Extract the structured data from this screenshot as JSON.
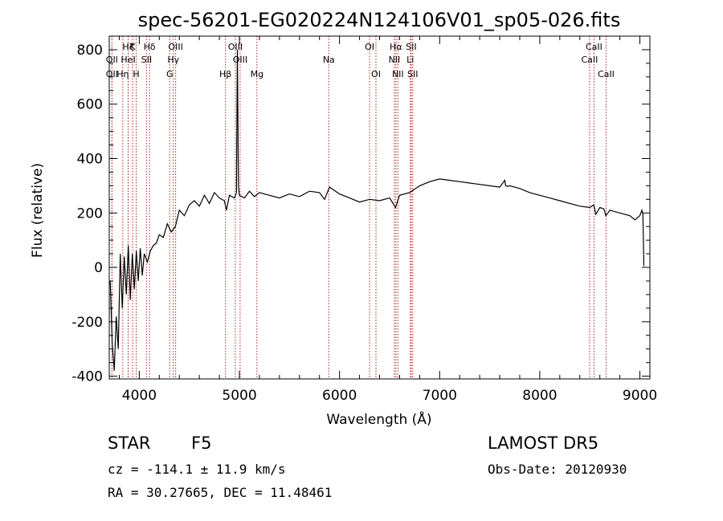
{
  "chart_data": {
    "type": "line",
    "title": "spec-56201-EG020224N124106V01_sp05-026.fits",
    "xlabel": "Wavelength (Å)",
    "ylabel": "Flux (relative)",
    "xlim": [
      3700,
      9100
    ],
    "ylim": [
      -410,
      850
    ],
    "x_ticks": [
      {
        "value": 4000,
        "label": "4000"
      },
      {
        "value": 5000,
        "label": "5000"
      },
      {
        "value": 6000,
        "label": "6000"
      },
      {
        "value": 7000,
        "label": "7000"
      },
      {
        "value": 8000,
        "label": "8000"
      },
      {
        "value": 9000,
        "label": "9000"
      }
    ],
    "y_ticks": [
      {
        "value": -400,
        "label": "-400"
      },
      {
        "value": -200,
        "label": "-200"
      },
      {
        "value": 0,
        "label": "0"
      },
      {
        "value": 200,
        "label": "200"
      },
      {
        "value": 400,
        "label": "400"
      },
      {
        "value": 600,
        "label": "600"
      },
      {
        "value": 800,
        "label": "800"
      }
    ],
    "series": [
      {
        "x": [
          3710,
          3730,
          3750,
          3770,
          3790,
          3810,
          3830,
          3850,
          3870,
          3890,
          3910,
          3930,
          3950,
          3970,
          3990,
          4010,
          4030,
          4050,
          4080,
          4110,
          4140,
          4170,
          4200,
          4240,
          4280,
          4320,
          4360,
          4400,
          4450,
          4500,
          4550,
          4600,
          4650,
          4700,
          4750,
          4800,
          4850,
          4870,
          4900,
          4950,
          4970,
          4980,
          4990,
          5000,
          5050,
          5100,
          5150,
          5200,
          5300,
          5400,
          5500,
          5600,
          5700,
          5800,
          5850,
          5900,
          6000,
          6100,
          6200,
          6300,
          6400,
          6500,
          6560,
          6600,
          6700,
          6800,
          6900,
          7000,
          7100,
          7200,
          7300,
          7400,
          7500,
          7600,
          7650,
          7660,
          7680,
          7700,
          7800,
          7900,
          8000,
          8100,
          8200,
          8300,
          8400,
          8500,
          8540,
          8560,
          8600,
          8640,
          8660,
          8700,
          8800,
          8900,
          8950,
          9000,
          9020,
          9030,
          9040
        ],
        "y": [
          -50,
          -280,
          -380,
          -180,
          -300,
          50,
          -150,
          40,
          -100,
          80,
          -120,
          50,
          -80,
          60,
          -50,
          70,
          -30,
          50,
          20,
          60,
          80,
          90,
          120,
          110,
          160,
          130,
          150,
          210,
          190,
          230,
          245,
          225,
          265,
          235,
          275,
          255,
          245,
          210,
          265,
          255,
          275,
          800,
          300,
          265,
          255,
          280,
          260,
          275,
          265,
          255,
          270,
          260,
          280,
          275,
          250,
          295,
          270,
          255,
          240,
          250,
          245,
          255,
          220,
          265,
          275,
          300,
          315,
          325,
          320,
          315,
          310,
          305,
          300,
          295,
          320,
          300,
          298,
          300,
          290,
          275,
          265,
          255,
          245,
          235,
          225,
          220,
          230,
          195,
          220,
          215,
          190,
          210,
          200,
          190,
          175,
          190,
          210,
          195,
          5
        ]
      }
    ],
    "lines": [
      {
        "x": 3727,
        "label": "OII",
        "row": 2
      },
      {
        "x": 3727,
        "label": "OII",
        "row": 3
      },
      {
        "x": 3835,
        "label": "Hη",
        "row": 3
      },
      {
        "x": 3889,
        "label": "Hζ",
        "row": 1
      },
      {
        "x": 3889,
        "label": "HeI",
        "row": 2
      },
      {
        "x": 3934,
        "label": "K",
        "row": 1
      },
      {
        "x": 3969,
        "label": "H",
        "row": 3
      },
      {
        "x": 4072,
        "label": "SII",
        "row": 2
      },
      {
        "x": 4102,
        "label": "Hδ",
        "row": 1
      },
      {
        "x": 4304,
        "label": "G",
        "row": 3
      },
      {
        "x": 4340,
        "label": "Hγ",
        "row": 2
      },
      {
        "x": 4363,
        "label": "OIII",
        "row": 1
      },
      {
        "x": 4861,
        "label": "Hβ",
        "row": 3
      },
      {
        "x": 4959,
        "label": "OIII",
        "row": 1
      },
      {
        "x": 5007,
        "label": "OIII",
        "row": 2
      },
      {
        "x": 5175,
        "label": "Mg",
        "row": 3
      },
      {
        "x": 5893,
        "label": "Na",
        "row": 2
      },
      {
        "x": 6300,
        "label": "OI",
        "row": 1
      },
      {
        "x": 6364,
        "label": "OI",
        "row": 3
      },
      {
        "x": 6548,
        "label": "NII",
        "row": 2
      },
      {
        "x": 6563,
        "label": "Hα",
        "row": 1
      },
      {
        "x": 6583,
        "label": "NII",
        "row": 3
      },
      {
        "x": 6707,
        "label": "Li",
        "row": 2
      },
      {
        "x": 6716,
        "label": "SII",
        "row": 1
      },
      {
        "x": 6731,
        "label": "SII",
        "row": 3
      },
      {
        "x": 8498,
        "label": "CaII",
        "row": 2
      },
      {
        "x": 8542,
        "label": "CaII",
        "row": 1
      },
      {
        "x": 8662,
        "label": "CaII",
        "row": 3
      }
    ]
  },
  "info": {
    "class_label": "STAR",
    "subclass": "F5",
    "survey": "LAMOST DR5",
    "cz": "cz = -114.1 ± 11.9 km/s",
    "obs_date": "Obs-Date: 20120930",
    "coords": "RA =  30.27665, DEC =  11.48461"
  },
  "colors": {
    "line_marker": "#b22222",
    "spectrum": "#000000"
  }
}
